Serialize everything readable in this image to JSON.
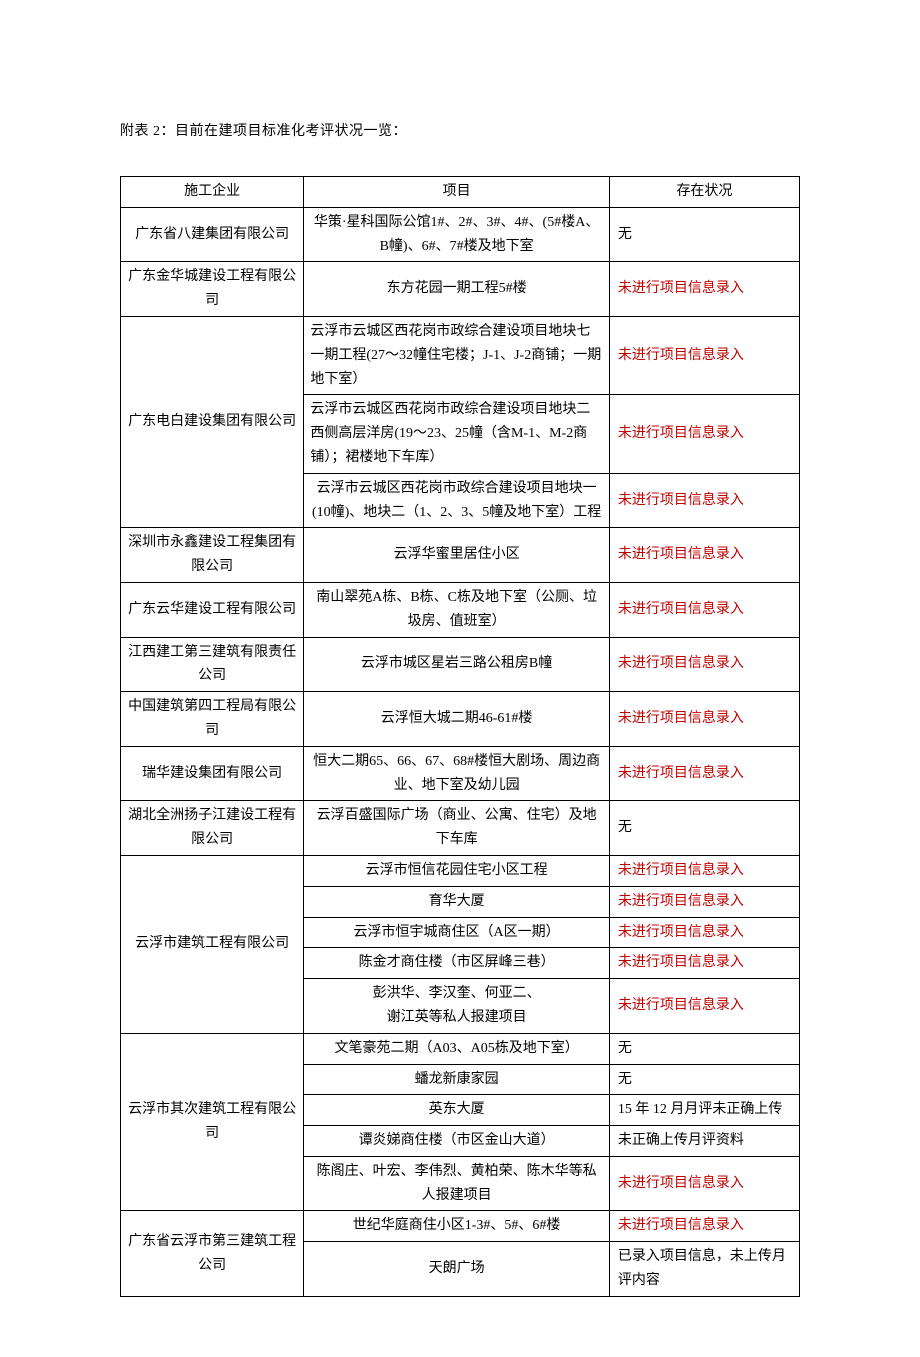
{
  "caption": "附表 2：目前在建项目标准化考评状况一览：",
  "headers": {
    "company": "施工企业",
    "project": "项目",
    "status": "存在状况"
  },
  "status_text": {
    "none": "无",
    "not_entered": "未进行项目信息录入",
    "dec15": "15 年 12 月月评未正确上传",
    "not_uploaded": "未正确上传月评资料",
    "entered_no_upload": "已录入项目信息，未上传月评内容"
  },
  "companies": {
    "c1": "广东省八建集团有限公司",
    "c2": "广东金华城建设工程有限公司",
    "c3": "广东电白建设集团有限公司",
    "c4": "深圳市永鑫建设工程集团有限公司",
    "c5": "广东云华建设工程有限公司",
    "c6": "江西建工第三建筑有限责任公司",
    "c7": "中国建筑第四工程局有限公司",
    "c8": "瑞华建设集团有限公司",
    "c9": "湖北全洲扬子江建设工程有限公司",
    "c10": "云浮市建筑工程有限公司",
    "c11": "云浮市其次建筑工程有限公司",
    "c12": "广东省云浮市第三建筑工程公司"
  },
  "projects": {
    "p1": "华策·星科国际公馆1#、2#、3#、4#、(5#楼A、B幢)、6#、7#楼及地下室",
    "p2": "东方花园一期工程5#楼",
    "p3": "云浮市云城区西花岗市政综合建设项目地块七一期工程(27～32幢住宅楼；J-1、J-2商铺；一期地下室）",
    "p4": "云浮市云城区西花岗市政综合建设项目地块二西侧高层洋房(19～23、25幢（含M-1、M-2商铺）；裙楼地下车库）",
    "p5": "云浮市云城区西花岗市政综合建设项目地块一(10幢)、地块二（1、2、3、5幢及地下室）工程",
    "p6": "云浮华蜜里居住小区",
    "p7": "南山翠苑A栋、B栋、C栋及地下室（公厕、垃圾房、值班室）",
    "p8": "云浮市城区星岩三路公租房B幢",
    "p9": "云浮恒大城二期46-61#楼",
    "p10": "恒大二期65、66、67、68#楼恒大剧场、周边商业、地下室及幼儿园",
    "p11": "云浮百盛国际广场（商业、公寓、住宅）及地下车库",
    "p12": "云浮市恒信花园住宅小区工程",
    "p13": "育华大厦",
    "p14": "云浮市恒宇城商住区（A区一期）",
    "p15": "陈金才商住楼（市区屏峰三巷）",
    "p16a": "彭洪华、李汉奎、何亚二、",
    "p16b": "谢江英等私人报建项目",
    "p17": "文笔豪苑二期（A03、A05栋及地下室）",
    "p18": "蟠龙新康家园",
    "p19": "英东大厦",
    "p20": "谭炎娣商住楼（市区金山大道）",
    "p21": "陈阁庄、叶宏、李伟烈、黄柏荣、陈木华等私人报建项目",
    "p22": "世纪华庭商住小区1-3#、5#、6#楼",
    "p23": "天朗广场"
  }
}
